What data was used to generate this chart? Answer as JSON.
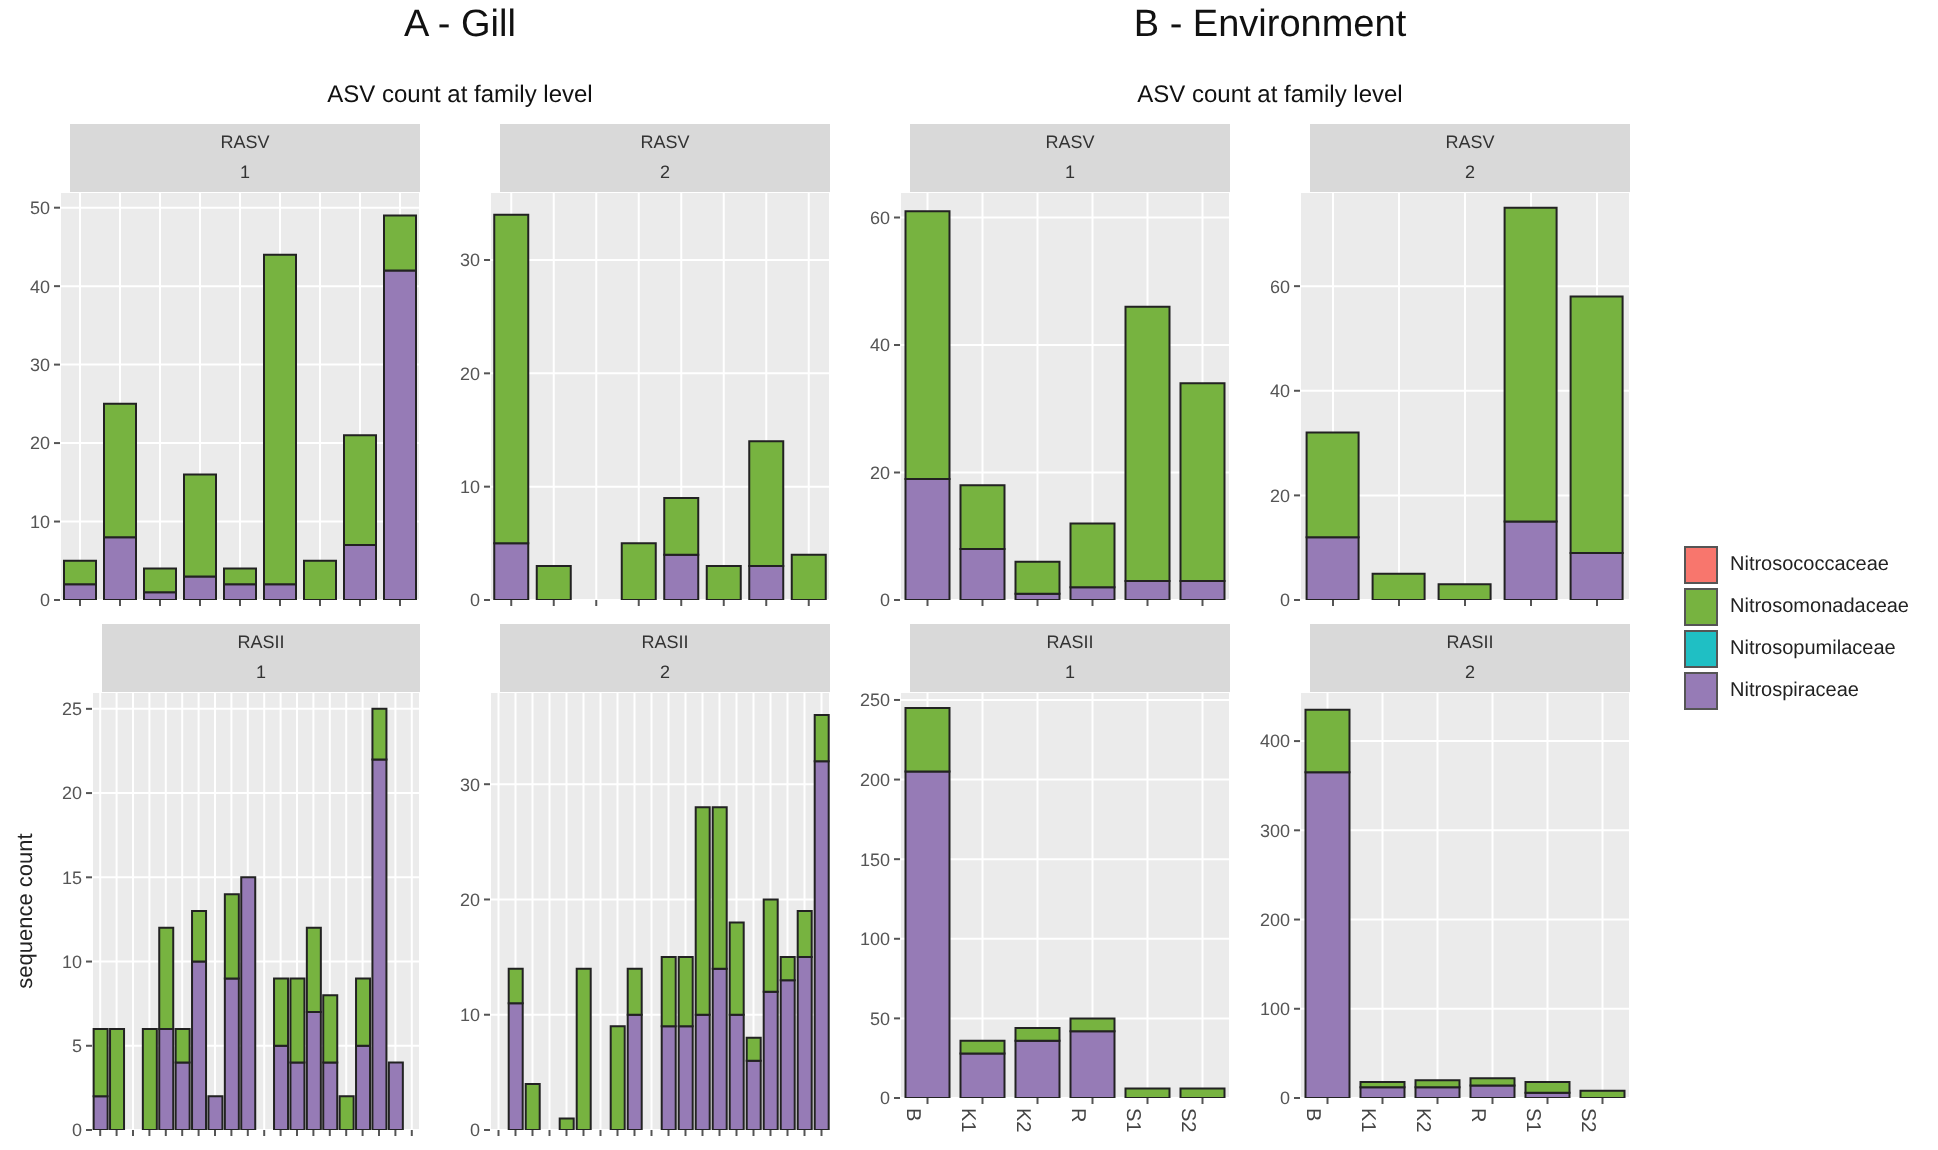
{
  "chart_data": [
    {
      "type": "bar",
      "stacked": true,
      "title": "RASV",
      "subtitle": "1",
      "annotations": [
        "A - Gill",
        "ASV count at family level"
      ],
      "categories": [
        null,
        null,
        null,
        null,
        null,
        null,
        null,
        null,
        null
      ],
      "ylim": [
        0,
        52
      ],
      "yticks": [
        0,
        10,
        20,
        30,
        40,
        50
      ],
      "grid": true,
      "series": [
        {
          "color": "#967bb6",
          "values": [
            2,
            8,
            1,
            3,
            2,
            2,
            0,
            7,
            42
          ]
        },
        {
          "color": "#77b340",
          "values": [
            3,
            17,
            3,
            13,
            2,
            42,
            5,
            14,
            7
          ]
        }
      ]
    },
    {
      "type": "bar",
      "stacked": true,
      "title": "RASV",
      "subtitle": "2",
      "categories": [
        null,
        null,
        null,
        null,
        null,
        null,
        null,
        null
      ],
      "ylim": [
        0,
        36
      ],
      "yticks": [
        0,
        10,
        20,
        30
      ],
      "grid": true,
      "series": [
        {
          "color": "#967bb6",
          "values": [
            5,
            0,
            0,
            0,
            4,
            0,
            3,
            0
          ]
        },
        {
          "color": "#77b340",
          "values": [
            29,
            3,
            0,
            5,
            5,
            3,
            11,
            4
          ]
        }
      ]
    },
    {
      "type": "bar",
      "stacked": true,
      "title": "RASV",
      "subtitle": "1",
      "annotations": [
        "B - Environment",
        "ASV count at family level"
      ],
      "categories": [
        null,
        null,
        null,
        null,
        null,
        null
      ],
      "ylim": [
        0,
        64
      ],
      "yticks": [
        0,
        20,
        40,
        60
      ],
      "grid": true,
      "series": [
        {
          "color": "#967bb6",
          "values": [
            19,
            8,
            1,
            2,
            3,
            3
          ]
        },
        {
          "color": "#77b340",
          "values": [
            42,
            10,
            5,
            10,
            43,
            31
          ]
        }
      ]
    },
    {
      "type": "bar",
      "stacked": true,
      "title": "RASV",
      "subtitle": "2",
      "categories": [
        null,
        null,
        null,
        null,
        null
      ],
      "ylim": [
        0,
        78
      ],
      "yticks": [
        0,
        20,
        40,
        60
      ],
      "grid": true,
      "legend": "right",
      "series": [
        {
          "name": "Nitrospiraceae",
          "color": "#967bb6",
          "values": [
            12,
            0,
            0,
            15,
            9
          ]
        },
        {
          "name": "Nitrosopumilaceae",
          "color": "#1fbfc4",
          "values": [
            0,
            0,
            0,
            0,
            0
          ]
        },
        {
          "name": "Nitrosomonadaceae",
          "color": "#77b340",
          "values": [
            20,
            5,
            3,
            60,
            49
          ]
        },
        {
          "name": "Nitrosococcaceae",
          "color": "#f8766d",
          "values": [
            0,
            0,
            0,
            0,
            0
          ]
        }
      ]
    },
    {
      "type": "bar",
      "stacked": true,
      "title": "RASII",
      "subtitle": "1",
      "ylabel": "sequence count",
      "categories": [
        null,
        null,
        null,
        null,
        null,
        null,
        null,
        null,
        null,
        null,
        null,
        null,
        null,
        null,
        null,
        null,
        null,
        null,
        null,
        null
      ],
      "ylim": [
        0,
        26
      ],
      "yticks": [
        0,
        5,
        10,
        15,
        20,
        25
      ],
      "grid": true,
      "series": [
        {
          "color": "#967bb6",
          "values": [
            2,
            0,
            0,
            0,
            6,
            4,
            10,
            2,
            9,
            15,
            0,
            5,
            4,
            7,
            4,
            0,
            5,
            22,
            4,
            0
          ]
        },
        {
          "color": "#77b340",
          "values": [
            4,
            6,
            0,
            6,
            6,
            2,
            3,
            0,
            5,
            0,
            0,
            4,
            5,
            5,
            4,
            2,
            4,
            3,
            0,
            0
          ]
        }
      ]
    },
    {
      "type": "bar",
      "stacked": true,
      "title": "RASII",
      "subtitle": "2",
      "categories": [
        null,
        null,
        null,
        null,
        null,
        null,
        null,
        null,
        null,
        null,
        null,
        null,
        null,
        null,
        null,
        null,
        null,
        null,
        null,
        null
      ],
      "ylim": [
        0,
        38
      ],
      "yticks": [
        0,
        10,
        20,
        30
      ],
      "grid": true,
      "series": [
        {
          "color": "#967bb6",
          "values": [
            0,
            11,
            0,
            0,
            0,
            0,
            0,
            0,
            10,
            0,
            9,
            9,
            10,
            14,
            10,
            6,
            12,
            13,
            15,
            32
          ]
        },
        {
          "color": "#77b340",
          "values": [
            0,
            3,
            4,
            0,
            1,
            14,
            0,
            9,
            4,
            0,
            6,
            6,
            18,
            14,
            8,
            2,
            8,
            2,
            4,
            4
          ]
        }
      ]
    },
    {
      "type": "bar",
      "stacked": true,
      "title": "RASII",
      "subtitle": "1",
      "categories": [
        "B",
        "K1",
        "K2",
        "R",
        "S1",
        "S2"
      ],
      "ylim": [
        0,
        255
      ],
      "yticks": [
        0,
        50,
        100,
        150,
        200,
        250
      ],
      "grid": true,
      "series": [
        {
          "color": "#967bb6",
          "values": [
            205,
            28,
            36,
            42,
            0,
            0
          ]
        },
        {
          "color": "#77b340",
          "values": [
            40,
            8,
            8,
            8,
            6,
            6
          ]
        }
      ]
    },
    {
      "type": "bar",
      "stacked": true,
      "title": "RASII",
      "subtitle": "2",
      "categories": [
        "B",
        "K1",
        "K2",
        "R",
        "S1",
        "S2"
      ],
      "ylim": [
        0,
        455
      ],
      "yticks": [
        0,
        100,
        200,
        300,
        400
      ],
      "grid": true,
      "series": [
        {
          "color": "#967bb6",
          "values": [
            365,
            12,
            12,
            14,
            6,
            null
          ]
        },
        {
          "color": "#77b340",
          "values": [
            70,
            6,
            8,
            8,
            12,
            8
          ]
        }
      ]
    }
  ]
}
